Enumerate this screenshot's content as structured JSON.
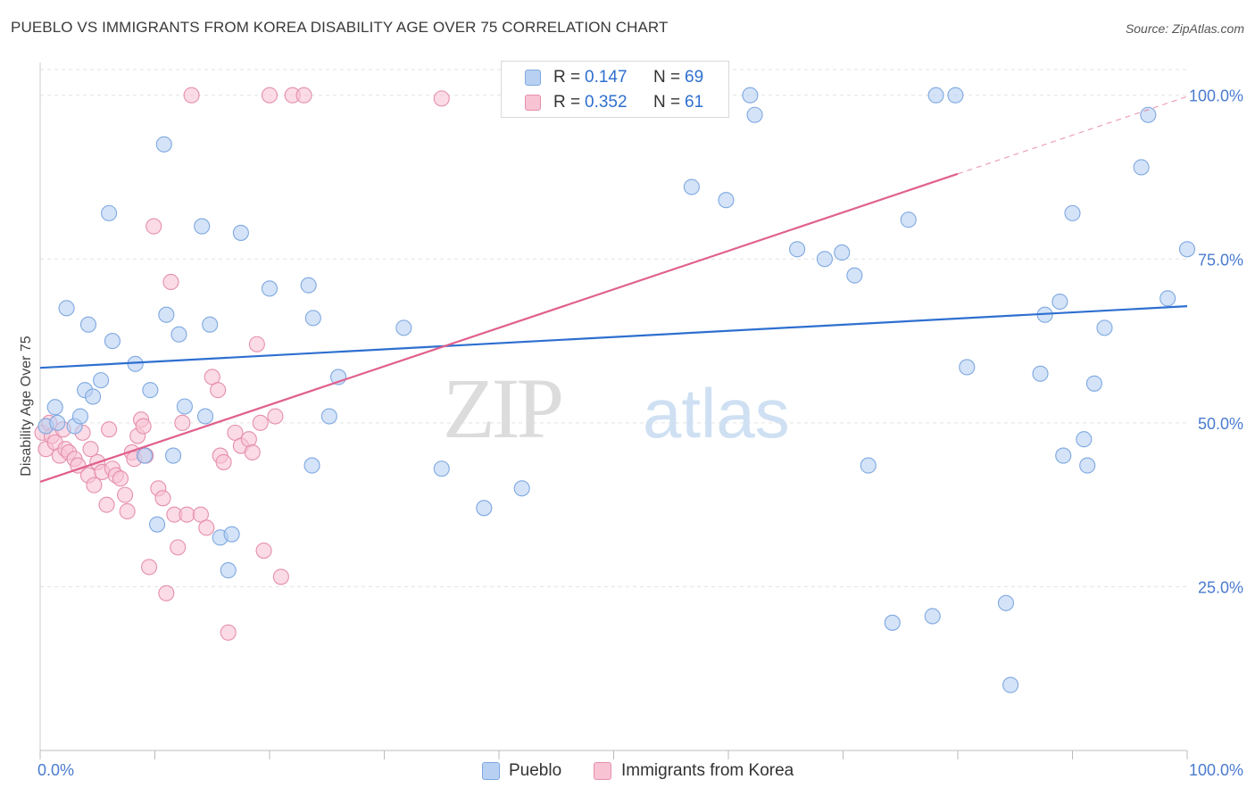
{
  "header": {
    "title": "PUEBLO VS IMMIGRANTS FROM KOREA DISABILITY AGE OVER 75 CORRELATION CHART",
    "source": "Source: ZipAtlas.com"
  },
  "watermark": {
    "zip": "ZIP",
    "atlas": "atlas"
  },
  "legend": {
    "r_label": "R =",
    "n_label": "N =",
    "rows": [
      {
        "r": "0.147",
        "n": "69",
        "fill": "#b8d1f3",
        "stroke": "#7ea8e0"
      },
      {
        "r": "0.352",
        "n": "61",
        "fill": "#f8c3d3",
        "stroke": "#e58fab"
      }
    ]
  },
  "chart_data": {
    "type": "scatter",
    "title": "PUEBLO VS IMMIGRANTS FROM KOREA DISABILITY AGE OVER 75 CORRELATION CHART",
    "xlabel": "",
    "ylabel": "Disability Age Over 75",
    "xlim": [
      0,
      100
    ],
    "ylim": [
      0,
      105
    ],
    "x_tick_labels": [
      "0.0%",
      "100.0%"
    ],
    "y_ticks": [
      25,
      50,
      75,
      100
    ],
    "y_tick_labels": [
      "25.0%",
      "50.0%",
      "75.0%",
      "100.0%"
    ],
    "grid": true,
    "legend_position": "bottom",
    "series": [
      {
        "name": "Pueblo",
        "color": "#7ea8e0",
        "fill": "#b8d1f3",
        "line_color": "#2e6fd0",
        "trend": {
          "x": [
            0,
            100
          ],
          "y": [
            58.4,
            67.8
          ]
        },
        "x": [
          0.5,
          1.3,
          1.5,
          2.3,
          3.0,
          3.5,
          3.9,
          4.2,
          4.6,
          5.3,
          6.0,
          6.3,
          8.3,
          9.1,
          9.6,
          10.2,
          10.8,
          11.0,
          11.6,
          12.1,
          12.6,
          14.1,
          14.4,
          14.8,
          15.7,
          16.4,
          16.7,
          17.5,
          20.0,
          23.4,
          23.7,
          23.8,
          25.2,
          26.0,
          31.7,
          35.0,
          38.7,
          42.0,
          50.0,
          56.8,
          59.8,
          61.9,
          62.3,
          66.0,
          68.4,
          69.9,
          71.0,
          72.2,
          74.3,
          75.7,
          77.8,
          78.1,
          79.8,
          80.8,
          84.2,
          84.6,
          87.2,
          87.6,
          88.9,
          89.2,
          90.0,
          91.0,
          91.3,
          91.9,
          92.8,
          96.0,
          96.6,
          98.3,
          100.0
        ],
        "y": [
          49.5,
          52.4,
          50.0,
          67.5,
          49.5,
          51.0,
          55.0,
          65.0,
          54.0,
          56.5,
          82.0,
          62.5,
          59.0,
          45.0,
          55.0,
          34.5,
          92.5,
          66.5,
          45.0,
          63.5,
          52.5,
          80.0,
          51.0,
          65.0,
          32.5,
          27.5,
          33.0,
          79.0,
          70.5,
          71.0,
          43.5,
          66.0,
          51.0,
          57.0,
          64.5,
          43.0,
          37.0,
          40.0,
          100.0,
          86.0,
          84.0,
          100.0,
          97.0,
          76.5,
          75.0,
          76.0,
          72.5,
          43.5,
          19.5,
          81.0,
          20.5,
          100.0,
          100.0,
          58.5,
          22.5,
          10.0,
          57.5,
          66.5,
          68.5,
          45.0,
          82.0,
          47.5,
          43.5,
          56.0,
          64.5,
          89.0,
          97.0,
          69.0,
          76.5
        ]
      },
      {
        "name": "Immigrants from Korea",
        "color": "#e58fab",
        "fill": "#f8c3d3",
        "line_color": "#e0608c",
        "trend": {
          "x": [
            0,
            80
          ],
          "y": [
            41.0,
            88.0
          ]
        },
        "trend_dashed": {
          "x": [
            80,
            100
          ],
          "y": [
            88.0,
            99.8
          ]
        },
        "x": [
          0.2,
          0.5,
          0.8,
          1.0,
          1.3,
          1.7,
          2.0,
          2.2,
          2.5,
          3.0,
          3.3,
          3.7,
          4.2,
          4.4,
          4.7,
          5.0,
          5.4,
          5.8,
          6.0,
          6.3,
          6.6,
          7.0,
          7.4,
          7.6,
          8.0,
          8.2,
          8.5,
          8.8,
          9.0,
          9.2,
          9.5,
          9.9,
          10.3,
          10.7,
          11.0,
          11.4,
          11.7,
          12.0,
          12.4,
          12.8,
          13.2,
          14.0,
          14.5,
          15.0,
          15.5,
          15.7,
          16.0,
          16.4,
          17.0,
          17.5,
          18.2,
          18.5,
          18.9,
          19.2,
          19.5,
          20.0,
          20.5,
          21.0,
          22.0,
          23.0,
          35.0
        ],
        "y": [
          48.5,
          46.0,
          50.0,
          48.0,
          47.0,
          45.0,
          49.0,
          46.0,
          45.5,
          44.5,
          43.5,
          48.5,
          42.0,
          46.0,
          40.5,
          44.0,
          42.5,
          37.5,
          49.0,
          43.0,
          42.0,
          41.5,
          39.0,
          36.5,
          45.5,
          44.5,
          48.0,
          50.5,
          49.5,
          45.0,
          28.0,
          80.0,
          40.0,
          38.5,
          24.0,
          71.5,
          36.0,
          31.0,
          50.0,
          36.0,
          100.0,
          36.0,
          34.0,
          57.0,
          55.0,
          45.0,
          44.0,
          18.0,
          48.5,
          46.5,
          47.5,
          45.5,
          62.0,
          50.0,
          30.5,
          100.0,
          51.0,
          26.5,
          100.0,
          100.0,
          99.5
        ]
      }
    ]
  }
}
